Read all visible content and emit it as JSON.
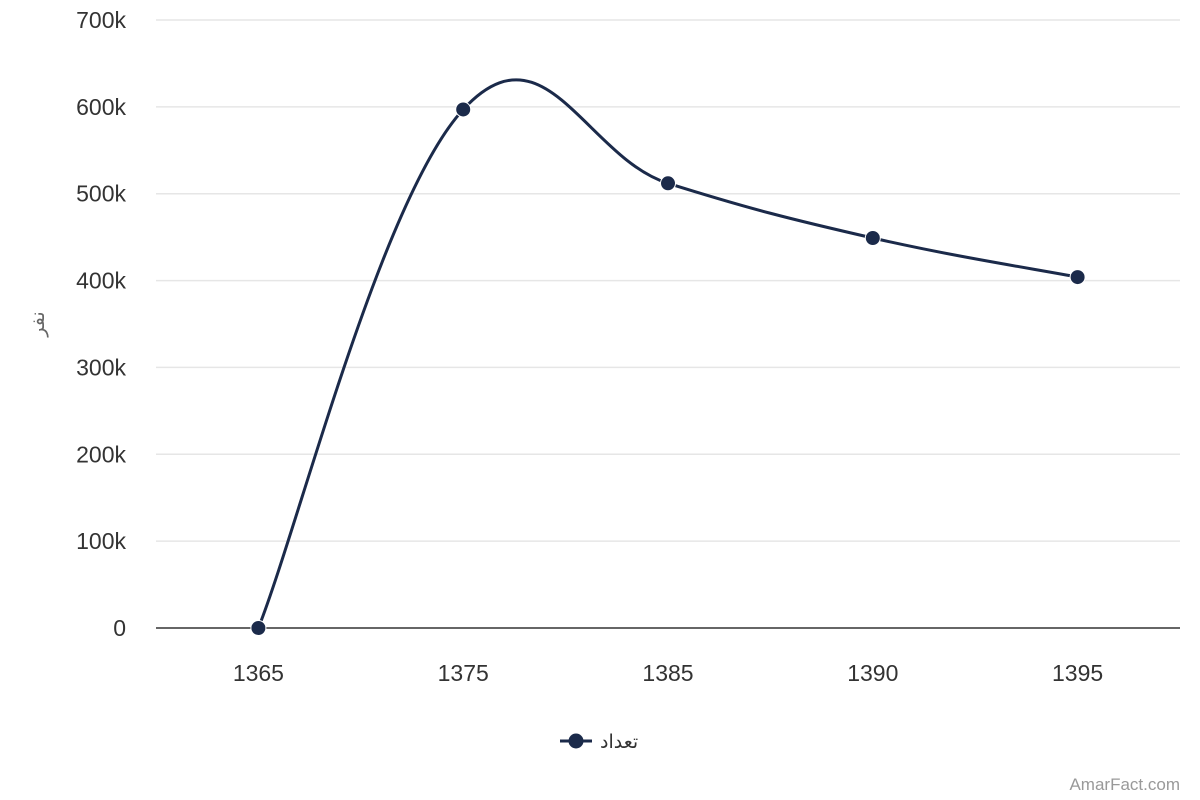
{
  "chart_data": {
    "type": "line",
    "categories": [
      "1365",
      "1375",
      "1385",
      "1390",
      "1395"
    ],
    "series": [
      {
        "name": "تعداد",
        "values": [
          0,
          597000,
          512000,
          449000,
          404000
        ],
        "color": "#1b2a4a"
      }
    ],
    "ylabel": "نفر",
    "ylim": [
      0,
      700000
    ],
    "yticks": [
      0,
      100000,
      200000,
      300000,
      400000,
      500000,
      600000,
      700000
    ],
    "ytick_labels": [
      "0",
      "100k",
      "200k",
      "300k",
      "400k",
      "500k",
      "600k",
      "700k"
    ],
    "grid": true,
    "legend_position": "bottom-center",
    "smooth": true,
    "credit": "AmarFact.com"
  }
}
